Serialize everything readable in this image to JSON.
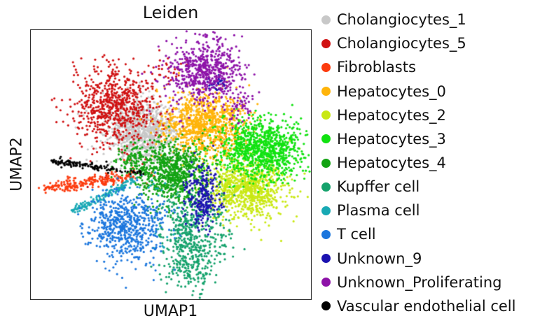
{
  "chart_data": {
    "type": "scatter",
    "title": "Leiden",
    "xlabel": "UMAP1",
    "ylabel": "UMAP2",
    "legend_position": "right-outside",
    "axes": {
      "ticks": false,
      "grid": false,
      "frame": true,
      "frame_color": "#2e2e2e"
    },
    "point_radius_px": 1.6,
    "coords": "normalized 0-1 inside plot frame, y increases downward",
    "clusters": [
      {
        "name": "Cholangiocytes_1",
        "color": "#c8c8c8",
        "blobs": [
          {
            "cx": 0.395,
            "cy": 0.374,
            "sx": 0.064,
            "sy": 0.057,
            "n": 850
          },
          {
            "cx": 0.4,
            "cy": 0.38,
            "sx": 0.1,
            "sy": 0.085,
            "n": 120
          }
        ]
      },
      {
        "name": "Cholangiocytes_5",
        "color": "#d01112",
        "blobs": [
          {
            "cx": 0.298,
            "cy": 0.28,
            "sx": 0.075,
            "sy": 0.073,
            "n": 680
          },
          {
            "cx": 0.4925,
            "cy": 0.1455,
            "sx": 0.03,
            "sy": 0.025,
            "n": 22
          },
          {
            "cx": 0.33,
            "cy": 0.48,
            "sx": 0.07,
            "sy": 0.05,
            "n": 12
          },
          {
            "cx": 0.68,
            "cy": 0.41,
            "sx": 0.02,
            "sy": 0.02,
            "n": 6
          }
        ]
      },
      {
        "name": "Fibroblasts",
        "color": "#fc3b0e",
        "blobs": [
          {
            "cx": 0.145,
            "cy": 0.575,
            "sx": 0.02,
            "sy": 0.013,
            "n": 30
          },
          {
            "cx": 0.26,
            "cy": 0.556,
            "sx": 0.025,
            "sy": 0.013,
            "n": 30
          },
          {
            "cx": 0.4,
            "cy": 0.525,
            "sx": 0.045,
            "sy": 0.028,
            "n": 15
          }
        ],
        "streaks": [
          {
            "x1": 0.0475,
            "y1": 0.592,
            "x2": 0.3625,
            "y2": 0.543,
            "n": 150,
            "jitter": 3.5
          }
        ]
      },
      {
        "name": "Hepatocytes_0",
        "color": "#ffb40a",
        "blobs": [
          {
            "cx": 0.6225,
            "cy": 0.348,
            "sx": 0.0725,
            "sy": 0.062,
            "n": 950
          }
        ]
      },
      {
        "name": "Hepatocytes_2",
        "color": "#c9e813",
        "blobs": [
          {
            "cx": 0.7725,
            "cy": 0.587,
            "sx": 0.07,
            "sy": 0.057,
            "n": 850
          }
        ]
      },
      {
        "name": "Hepatocytes_3",
        "color": "#11e211",
        "blobs": [
          {
            "cx": 0.8225,
            "cy": 0.442,
            "sx": 0.08,
            "sy": 0.057,
            "n": 950
          }
        ]
      },
      {
        "name": "Hepatocytes_4",
        "color": "#12a312",
        "blobs": [
          {
            "cx": 0.51,
            "cy": 0.535,
            "sx": 0.065,
            "sy": 0.06,
            "n": 750
          },
          {
            "cx": 0.3725,
            "cy": 0.483,
            "sx": 0.035,
            "sy": 0.03,
            "n": 110
          }
        ]
      },
      {
        "name": "Kupffer cell",
        "color": "#15a26c",
        "blobs": [
          {
            "cx": 0.555,
            "cy": 0.717,
            "sx": 0.05,
            "sy": 0.06,
            "n": 250
          },
          {
            "cx": 0.5725,
            "cy": 0.857,
            "sx": 0.045,
            "sy": 0.055,
            "n": 250
          },
          {
            "cx": 0.67,
            "cy": 0.73,
            "sx": 0.03,
            "sy": 0.065,
            "n": 70
          }
        ]
      },
      {
        "name": "Plasma cell",
        "color": "#18a9b4",
        "blobs": [
          {
            "cx": 0.43,
            "cy": 0.57,
            "sx": 0.025,
            "sy": 0.02,
            "n": 10
          },
          {
            "cx": 0.47,
            "cy": 0.78,
            "sx": 0.02,
            "sy": 0.03,
            "n": 8
          }
        ],
        "streaks": [
          {
            "x1": 0.1525,
            "y1": 0.673,
            "x2": 0.3675,
            "y2": 0.556,
            "n": 135,
            "jitter": 3
          }
        ]
      },
      {
        "name": "T cell",
        "color": "#1b76dd",
        "blobs": [
          {
            "cx": 0.3375,
            "cy": 0.727,
            "sx": 0.065,
            "sy": 0.065,
            "n": 600
          },
          {
            "cx": 0.47,
            "cy": 0.67,
            "sx": 0.035,
            "sy": 0.03,
            "n": 25
          }
        ]
      },
      {
        "name": "Unknown_9",
        "color": "#1b12b0",
        "blobs": [
          {
            "cx": 0.61,
            "cy": 0.613,
            "sx": 0.03,
            "sy": 0.062,
            "n": 260
          },
          {
            "cx": 0.665,
            "cy": 0.2,
            "sx": 0.018,
            "sy": 0.015,
            "n": 30
          }
        ]
      },
      {
        "name": "Unknown_Proliferating",
        "color": "#8d12a8",
        "blobs": [
          {
            "cx": 0.6225,
            "cy": 0.153,
            "sx": 0.0675,
            "sy": 0.062,
            "n": 620
          },
          {
            "cx": 0.75,
            "cy": 0.288,
            "sx": 0.025,
            "sy": 0.028,
            "n": 45
          }
        ]
      },
      {
        "name": "Vascular endothelial cell",
        "color": "#000000",
        "streaks": [
          {
            "x1": 0.075,
            "y1": 0.486,
            "x2": 0.3,
            "y2": 0.518,
            "n": 110,
            "jitter": 2.5
          },
          {
            "x1": 0.3,
            "y1": 0.518,
            "x2": 0.4,
            "y2": 0.532,
            "n": 20,
            "jitter": 2.5
          }
        ]
      }
    ]
  }
}
